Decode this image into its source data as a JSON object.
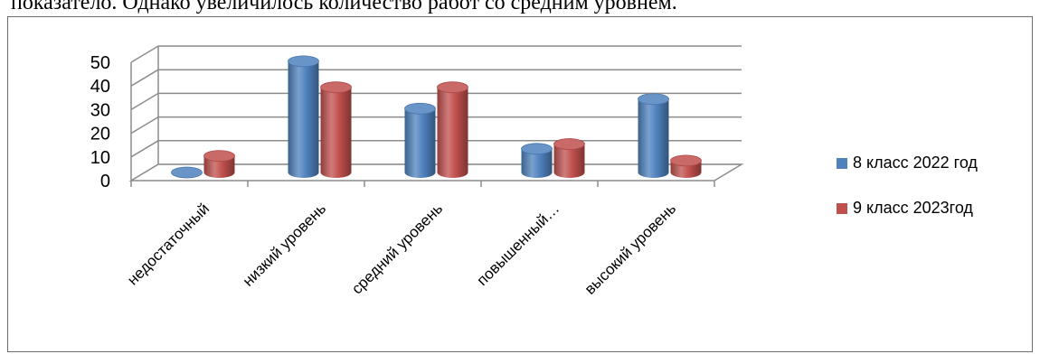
{
  "document": {
    "text_above": "показатело. Однако увеличилось количество работ со средним уровнем."
  },
  "chart_data": {
    "type": "bar",
    "title": "",
    "xlabel": "",
    "ylabel": "",
    "ylim": [
      0,
      50
    ],
    "yticks": [
      0,
      10,
      20,
      30,
      40,
      50
    ],
    "grid": true,
    "legend_position": "right",
    "categories": [
      "недостаточный",
      "низкий уровень",
      "средний уровень",
      "повышенный…",
      "высокий уровень"
    ],
    "series": [
      {
        "name": "8 класс 2022 год",
        "color": "#4f81bd",
        "values": [
          0,
          47,
          27,
          10,
          31
        ]
      },
      {
        "name": "9 класс 2023год",
        "color": "#c0504d",
        "values": [
          7,
          36,
          36,
          12,
          5
        ]
      }
    ]
  }
}
